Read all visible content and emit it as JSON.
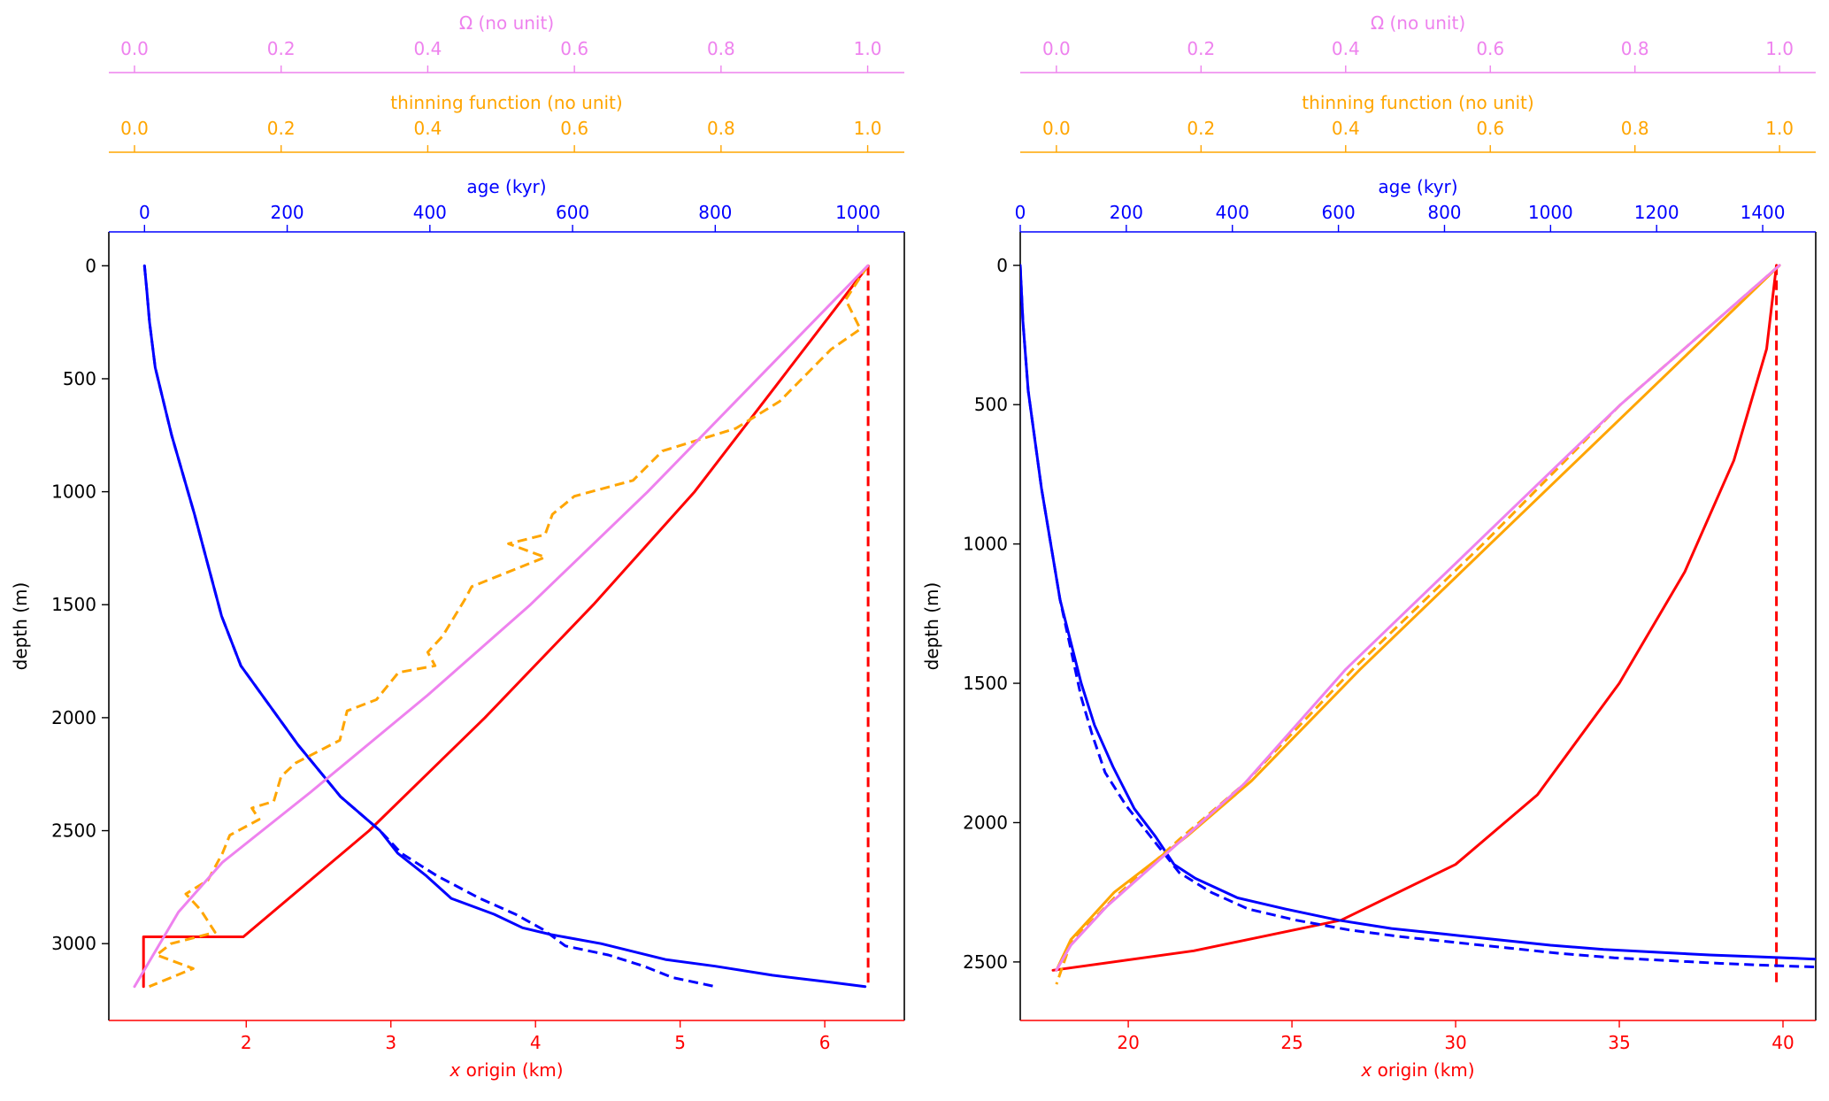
{
  "colors": {
    "omega": "#ee82ee",
    "thinning": "#ffa500",
    "age": "#0000ff",
    "x_origin": "#ff0000",
    "depth": "#000000"
  },
  "chart_data": [
    {
      "type": "line",
      "depth_axis": {
        "label": "depth (m)",
        "lim": [
          3340,
          -150
        ],
        "ticks": [
          0,
          500,
          1000,
          1500,
          2000,
          2500,
          3000
        ]
      },
      "x_origin_axis": {
        "label": "x origin (km)",
        "lim": [
          1.05,
          6.55
        ],
        "ticks": [
          2,
          3,
          4,
          5,
          6
        ],
        "x_italic": "x",
        "label_rest": " origin (km)"
      },
      "age_axis": {
        "label": "age (kyr)",
        "lim": [
          -50,
          1065
        ],
        "ticks": [
          0,
          200,
          400,
          600,
          800,
          1000
        ]
      },
      "thinning_axis": {
        "label": "thinning function (no unit)",
        "lim": [
          -0.035,
          1.05
        ],
        "ticks": [
          0.0,
          0.2,
          0.4,
          0.6,
          0.8,
          1.0
        ],
        "tick_labels": [
          "0.0",
          "0.2",
          "0.4",
          "0.6",
          "0.8",
          "1.0"
        ]
      },
      "omega_axis": {
        "label": "Ω (no unit)",
        "lim": [
          -0.035,
          1.05
        ],
        "ticks": [
          0.0,
          0.2,
          0.4,
          0.6,
          0.8,
          1.0
        ],
        "tick_labels": [
          "0.0",
          "0.2",
          "0.4",
          "0.6",
          "0.8",
          "1.0"
        ]
      },
      "series": [
        {
          "axis": "x_origin",
          "style": "solid",
          "points": [
            [
              6.3,
              0
            ],
            [
              5.7,
              500
            ],
            [
              5.1,
              1000
            ],
            [
              4.4,
              1500
            ],
            [
              3.65,
              2000
            ],
            [
              2.85,
              2500
            ],
            [
              1.98,
              2970
            ],
            [
              1.29,
              2970
            ],
            [
              1.29,
              3190
            ]
          ]
        },
        {
          "axis": "x_origin",
          "style": "dashed",
          "points": [
            [
              6.3,
              0
            ],
            [
              6.3,
              3190
            ]
          ]
        },
        {
          "axis": "age",
          "style": "solid",
          "points": [
            [
              0,
              0
            ],
            [
              3,
              100
            ],
            [
              7,
              250
            ],
            [
              15,
              450
            ],
            [
              38,
              750
            ],
            [
              70,
              1100
            ],
            [
              108,
              1550
            ],
            [
              135,
              1770
            ],
            [
              215,
              2120
            ],
            [
              275,
              2350
            ],
            [
              330,
              2500
            ],
            [
              355,
              2600
            ],
            [
              395,
              2700
            ],
            [
              430,
              2800
            ],
            [
              490,
              2870
            ],
            [
              530,
              2930
            ],
            [
              570,
              2960
            ],
            [
              640,
              3000
            ],
            [
              730,
              3070
            ],
            [
              800,
              3100
            ],
            [
              880,
              3140
            ],
            [
              960,
              3170
            ],
            [
              1010,
              3190
            ]
          ]
        },
        {
          "axis": "age",
          "style": "dashed",
          "points": [
            [
              0,
              0
            ],
            [
              3,
              100
            ],
            [
              7,
              250
            ],
            [
              15,
              450
            ],
            [
              38,
              750
            ],
            [
              70,
              1100
            ],
            [
              108,
              1550
            ],
            [
              135,
              1770
            ],
            [
              215,
              2120
            ],
            [
              275,
              2350
            ],
            [
              330,
              2500
            ],
            [
              360,
              2600
            ],
            [
              410,
              2700
            ],
            [
              470,
              2800
            ],
            [
              520,
              2870
            ],
            [
              560,
              2940
            ],
            [
              590,
              3010
            ],
            [
              650,
              3050
            ],
            [
              700,
              3100
            ],
            [
              740,
              3150
            ],
            [
              800,
              3190
            ]
          ]
        },
        {
          "axis": "thinning",
          "style": "dashed",
          "points": [
            [
              1.0,
              0
            ],
            [
              0.97,
              150
            ],
            [
              0.99,
              280
            ],
            [
              0.95,
              370
            ],
            [
              0.88,
              600
            ],
            [
              0.82,
              720
            ],
            [
              0.72,
              820
            ],
            [
              0.68,
              950
            ],
            [
              0.6,
              1020
            ],
            [
              0.57,
              1100
            ],
            [
              0.56,
              1190
            ],
            [
              0.51,
              1230
            ],
            [
              0.56,
              1290
            ],
            [
              0.46,
              1420
            ],
            [
              0.45,
              1480
            ],
            [
              0.42,
              1640
            ],
            [
              0.4,
              1710
            ],
            [
              0.41,
              1770
            ],
            [
              0.36,
              1800
            ],
            [
              0.33,
              1920
            ],
            [
              0.29,
              1970
            ],
            [
              0.28,
              2100
            ],
            [
              0.22,
              2200
            ],
            [
              0.2,
              2260
            ],
            [
              0.19,
              2370
            ],
            [
              0.16,
              2400
            ],
            [
              0.17,
              2450
            ],
            [
              0.13,
              2520
            ],
            [
              0.12,
              2600
            ],
            [
              0.1,
              2720
            ],
            [
              0.07,
              2780
            ],
            [
              0.09,
              2850
            ],
            [
              0.11,
              2950
            ],
            [
              0.05,
              3000
            ],
            [
              0.03,
              3050
            ],
            [
              0.08,
              3110
            ],
            [
              0.02,
              3190
            ]
          ]
        },
        {
          "axis": "omega",
          "style": "solid",
          "points": [
            [
              1.0,
              0
            ],
            [
              0.85,
              500
            ],
            [
              0.7,
              1000
            ],
            [
              0.54,
              1500
            ],
            [
              0.4,
              1900
            ],
            [
              0.24,
              2330
            ],
            [
              0.12,
              2640
            ],
            [
              0.06,
              2860
            ],
            [
              0.0,
              3190
            ]
          ]
        }
      ]
    },
    {
      "type": "line",
      "depth_axis": {
        "label": "depth (m)",
        "lim": [
          2710,
          -120
        ],
        "ticks": [
          0,
          500,
          1000,
          1500,
          2000,
          2500
        ]
      },
      "x_origin_axis": {
        "label": "x origin (km)",
        "lim": [
          16.7,
          41.0
        ],
        "ticks": [
          20,
          25,
          30,
          35,
          40
        ],
        "x_italic": "x",
        "label_rest": " origin (km)"
      },
      "age_axis": {
        "label": "age (kyr)",
        "lim": [
          0,
          1500
        ],
        "ticks": [
          0,
          200,
          400,
          600,
          800,
          1000,
          1200,
          1400
        ]
      },
      "thinning_axis": {
        "label": "thinning function (no unit)",
        "lim": [
          -0.05,
          1.05
        ],
        "ticks": [
          0.0,
          0.2,
          0.4,
          0.6,
          0.8,
          1.0
        ],
        "tick_labels": [
          "0.0",
          "0.2",
          "0.4",
          "0.6",
          "0.8",
          "1.0"
        ]
      },
      "omega_axis": {
        "label": "Ω (no unit)",
        "lim": [
          -0.05,
          1.05
        ],
        "ticks": [
          0.0,
          0.2,
          0.4,
          0.6,
          0.8,
          1.0
        ],
        "tick_labels": [
          "0.0",
          "0.2",
          "0.4",
          "0.6",
          "0.8",
          "1.0"
        ]
      },
      "series": [
        {
          "axis": "x_origin",
          "style": "solid",
          "points": [
            [
              39.8,
              0
            ],
            [
              39.5,
              300
            ],
            [
              38.5,
              700
            ],
            [
              37.0,
              1100
            ],
            [
              35.0,
              1500
            ],
            [
              32.5,
              1900
            ],
            [
              30.0,
              2150
            ],
            [
              26.5,
              2350
            ],
            [
              22.0,
              2460
            ],
            [
              17.7,
              2530
            ]
          ]
        },
        {
          "axis": "x_origin",
          "style": "dashed",
          "points": [
            [
              39.8,
              0
            ],
            [
              39.8,
              2580
            ]
          ]
        },
        {
          "axis": "age",
          "style": "solid",
          "points": [
            [
              0,
              0
            ],
            [
              5,
              200
            ],
            [
              15,
              450
            ],
            [
              40,
              800
            ],
            [
              75,
              1200
            ],
            [
              115,
              1500
            ],
            [
              140,
              1650
            ],
            [
              175,
              1800
            ],
            [
              215,
              1950
            ],
            [
              255,
              2050
            ],
            [
              290,
              2150
            ],
            [
              330,
              2200
            ],
            [
              410,
              2270
            ],
            [
              500,
              2310
            ],
            [
              600,
              2350
            ],
            [
              700,
              2380
            ],
            [
              800,
              2400
            ],
            [
              900,
              2420
            ],
            [
              1000,
              2440
            ],
            [
              1100,
              2455
            ],
            [
              1200,
              2465
            ],
            [
              1300,
              2475
            ],
            [
              1400,
              2482
            ],
            [
              1500,
              2490
            ]
          ]
        },
        {
          "axis": "age",
          "style": "dashed",
          "points": [
            [
              0,
              0
            ],
            [
              5,
              200
            ],
            [
              15,
              450
            ],
            [
              40,
              800
            ],
            [
              75,
              1200
            ],
            [
              115,
              1550
            ],
            [
              135,
              1680
            ],
            [
              160,
              1820
            ],
            [
              200,
              1940
            ],
            [
              250,
              2060
            ],
            [
              300,
              2180
            ],
            [
              360,
              2250
            ],
            [
              430,
              2310
            ],
            [
              520,
              2350
            ],
            [
              620,
              2385
            ],
            [
              720,
              2410
            ],
            [
              820,
              2430
            ],
            [
              920,
              2450
            ],
            [
              1020,
              2470
            ],
            [
              1120,
              2485
            ],
            [
              1220,
              2495
            ],
            [
              1320,
              2505
            ],
            [
              1420,
              2513
            ],
            [
              1500,
              2518
            ]
          ]
        },
        {
          "axis": "thinning",
          "style": "solid",
          "points": [
            [
              1.0,
              0
            ],
            [
              0.8,
              500
            ],
            [
              0.6,
              1000
            ],
            [
              0.42,
              1450
            ],
            [
              0.27,
              1850
            ],
            [
              0.18,
              2050
            ],
            [
              0.08,
              2250
            ],
            [
              0.02,
              2420
            ],
            [
              0.0,
              2530
            ]
          ]
        },
        {
          "axis": "thinning",
          "style": "dashed",
          "points": [
            [
              1.0,
              0
            ],
            [
              0.78,
              500
            ],
            [
              0.59,
              1000
            ],
            [
              0.41,
              1450
            ],
            [
              0.26,
              1860
            ],
            [
              0.17,
              2060
            ],
            [
              0.08,
              2270
            ],
            [
              0.02,
              2430
            ],
            [
              0.0,
              2580
            ]
          ]
        },
        {
          "axis": "omega",
          "style": "solid",
          "points": [
            [
              1.0,
              0
            ],
            [
              0.78,
              500
            ],
            [
              0.58,
              1000
            ],
            [
              0.4,
              1450
            ],
            [
              0.26,
              1860
            ],
            [
              0.17,
              2070
            ],
            [
              0.07,
              2300
            ],
            [
              0.02,
              2440
            ],
            [
              0.0,
              2530
            ]
          ]
        }
      ]
    }
  ]
}
